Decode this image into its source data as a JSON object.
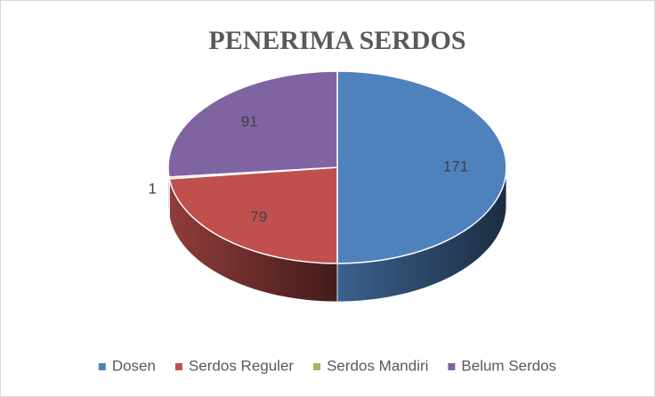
{
  "chart_data": {
    "type": "pie",
    "title": "PENERIMA SERDOS",
    "categories": [
      "Dosen",
      "Serdos Reguler",
      "Serdos Mandiri",
      "Belum Serdos"
    ],
    "values": [
      171,
      79,
      1,
      91
    ],
    "colors": [
      "#4f81bd",
      "#c0504d",
      "#9bbb59",
      "#8064a2"
    ],
    "legend": "bottom"
  }
}
